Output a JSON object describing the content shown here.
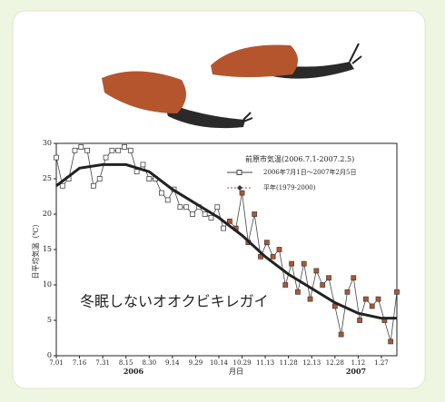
{
  "chart_data": {
    "type": "line",
    "title": "前原市気温(2006.7.1-2007.2.5)",
    "annotation": "冬眠しないオオクビキレガイ",
    "y_label": "日平均気温（℃）",
    "x_label": "月日",
    "year_labels": [
      "2006",
      "2007"
    ],
    "xlim": [
      0,
      220
    ],
    "xticks": [
      {
        "value": 0,
        "label": "7.01"
      },
      {
        "value": 15,
        "label": "7.16"
      },
      {
        "value": 30,
        "label": "7.31"
      },
      {
        "value": 45,
        "label": "8.15"
      },
      {
        "value": 60,
        "label": "8.30"
      },
      {
        "value": 75,
        "label": "9.14"
      },
      {
        "value": 90,
        "label": "9.29"
      },
      {
        "value": 105,
        "label": "10.14"
      },
      {
        "value": 120,
        "label": "10.29"
      },
      {
        "value": 135,
        "label": "11.13"
      },
      {
        "value": 150,
        "label": "11.28"
      },
      {
        "value": 165,
        "label": "12.13"
      },
      {
        "value": 180,
        "label": "12.28"
      },
      {
        "value": 195,
        "label": "1.12"
      },
      {
        "value": 210,
        "label": "1.27"
      }
    ],
    "ylim": [
      0,
      30
    ],
    "yticks": [
      0,
      5,
      10,
      15,
      20,
      25,
      30
    ],
    "series": [
      {
        "name": "2006年7月1日～2007年2月5日",
        "color": "#444",
        "x": [
          0,
          4,
          8,
          12,
          16,
          20,
          24,
          28,
          32,
          36,
          40,
          44,
          48,
          52,
          56,
          60,
          64,
          68,
          72,
          76,
          80,
          84,
          88,
          92,
          96,
          100,
          104,
          108,
          112,
          116,
          120,
          124,
          128,
          132,
          136,
          140,
          144,
          148,
          152,
          156,
          160,
          164,
          168,
          172,
          176,
          180,
          184,
          188,
          192,
          196,
          200,
          204,
          208,
          212,
          216,
          220
        ],
        "values": [
          28,
          24,
          25,
          29,
          29.5,
          29,
          24,
          25,
          28,
          29,
          29,
          29.5,
          29,
          26,
          27,
          25,
          25,
          23,
          22,
          23.5,
          21,
          21,
          20,
          21,
          20,
          19.5,
          21,
          18,
          19,
          18,
          23,
          16,
          20,
          14,
          16,
          14,
          15,
          10,
          13,
          9,
          13,
          8,
          12,
          10,
          11,
          7,
          3,
          9,
          11,
          5,
          8,
          7,
          8,
          5,
          2,
          9
        ]
      },
      {
        "name": "平年(1979-2000)",
        "color": "#222",
        "x": [
          0,
          15,
          30,
          45,
          60,
          75,
          90,
          105,
          120,
          135,
          150,
          165,
          180,
          195,
          210,
          220
        ],
        "values": [
          24,
          26.5,
          27,
          27,
          26,
          23.5,
          21.5,
          19.5,
          17,
          14,
          11.5,
          9.5,
          7.5,
          6,
          5.3,
          5.3
        ]
      }
    ]
  }
}
